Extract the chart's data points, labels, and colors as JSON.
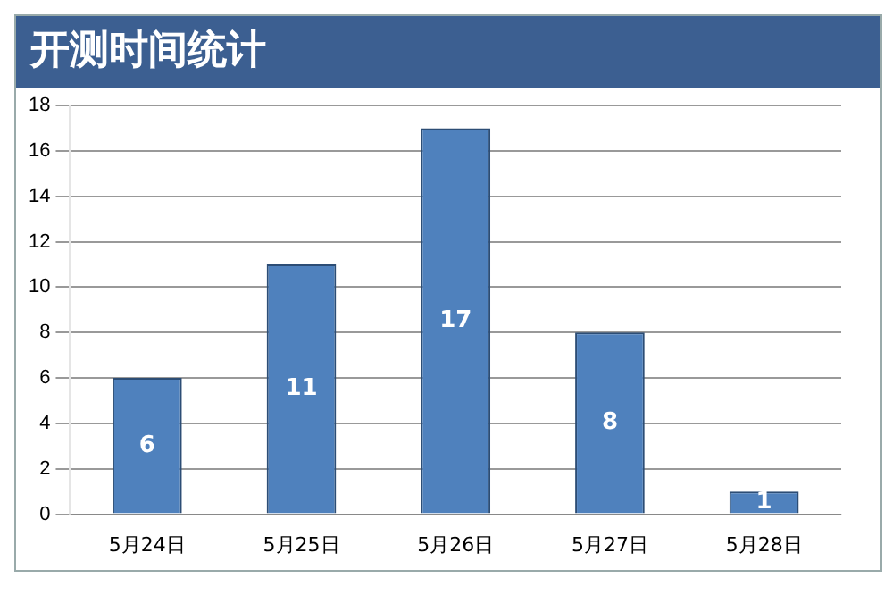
{
  "chart_data": {
    "type": "bar",
    "title": "开测时间统计",
    "categories": [
      "5月24日",
      "5月25日",
      "5月26日",
      "5月27日",
      "5月28日"
    ],
    "values": [
      6,
      11,
      17,
      8,
      1
    ],
    "color": "#4f81bd",
    "ylim": [
      0,
      18
    ],
    "yticks": [
      0,
      2,
      4,
      6,
      8,
      10,
      12,
      14,
      16,
      18
    ],
    "grid": "y",
    "data_labels": true
  }
}
